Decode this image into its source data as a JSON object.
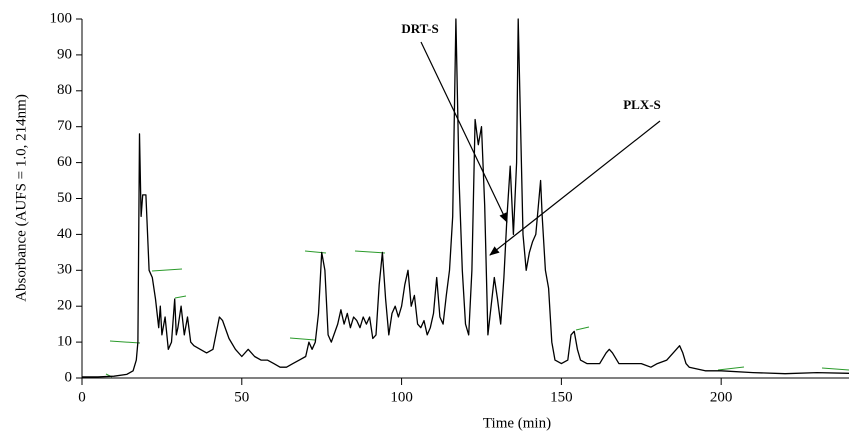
{
  "chart_data": {
    "type": "line",
    "xlabel": "Time (min)",
    "ylabel": "Absorbance (AUFS = 1.0, 214nm)",
    "annotations": [
      "DRT-S",
      "PLX-S"
    ],
    "color": "#000000",
    "xlim": [
      0,
      240
    ],
    "xticks": [
      0,
      50,
      100,
      150,
      200
    ],
    "ylim": [
      0,
      100
    ],
    "yticks": [
      0,
      10,
      20,
      30,
      40,
      50,
      60,
      70,
      80,
      90,
      100
    ],
    "x": [
      0,
      5,
      10,
      14,
      16,
      17,
      17.5,
      18,
      18.5,
      19,
      20,
      21,
      22,
      23,
      24,
      24.5,
      25,
      26,
      27,
      28,
      29,
      29.5,
      30,
      31,
      32,
      33,
      34,
      35,
      37,
      39,
      41,
      43,
      44,
      46,
      48,
      50,
      52,
      54,
      56,
      58,
      60,
      62,
      64,
      66,
      68,
      70,
      71,
      72,
      73,
      74,
      75,
      76,
      77,
      78,
      80,
      81,
      82,
      83,
      84,
      85,
      86,
      87,
      88,
      89,
      90,
      91,
      92,
      93,
      94,
      95,
      96,
      97,
      98,
      99,
      100,
      101,
      102,
      103,
      104,
      105,
      106,
      107,
      108,
      109,
      110,
      111,
      112,
      113,
      114,
      115,
      116,
      117,
      118,
      119,
      120,
      121,
      122,
      123,
      124,
      125,
      126,
      127,
      128,
      129,
      130,
      131,
      132,
      133,
      134,
      135,
      136,
      136.5,
      137,
      138,
      139,
      140,
      141,
      142,
      143,
      143.5,
      144,
      145,
      146,
      147,
      148,
      150,
      152,
      153,
      154,
      155,
      156,
      158,
      160,
      162,
      164,
      165,
      166,
      168,
      170,
      175,
      178,
      180,
      183,
      186,
      187,
      188,
      189,
      190,
      195,
      200,
      210,
      220,
      230,
      240
    ],
    "values": [
      0.3,
      0.3,
      0.5,
      1,
      2,
      5,
      10,
      68,
      45,
      51,
      51,
      30,
      28,
      22,
      14,
      20,
      12,
      17,
      8,
      10,
      22,
      12,
      14,
      20,
      12,
      17,
      10,
      9,
      8,
      7,
      8,
      17,
      16,
      11,
      8,
      6,
      8,
      6,
      5,
      5,
      4,
      3,
      3,
      4,
      5,
      6,
      10,
      8,
      10,
      18,
      35,
      30,
      12,
      10,
      15,
      19,
      15,
      18,
      14,
      17,
      16,
      14,
      17,
      15,
      17,
      11,
      12,
      26,
      35,
      22,
      12,
      18,
      20,
      17,
      20,
      26,
      30,
      20,
      23,
      15,
      14,
      16,
      12,
      14,
      18,
      28,
      17,
      15,
      23,
      30,
      45,
      100,
      55,
      30,
      15,
      12,
      30,
      72,
      65,
      70,
      48,
      12,
      20,
      28,
      22,
      15,
      28,
      45,
      59,
      40,
      60,
      100,
      80,
      40,
      30,
      35,
      38,
      40,
      50,
      55,
      45,
      30,
      25,
      10,
      5,
      4,
      5,
      12,
      13,
      8,
      5,
      4,
      4,
      4,
      7,
      8,
      7,
      4,
      4,
      4,
      3,
      4,
      5,
      8,
      9,
      7,
      4,
      3,
      2,
      2,
      1.5,
      1.2,
      1.5,
      1.3
    ]
  }
}
